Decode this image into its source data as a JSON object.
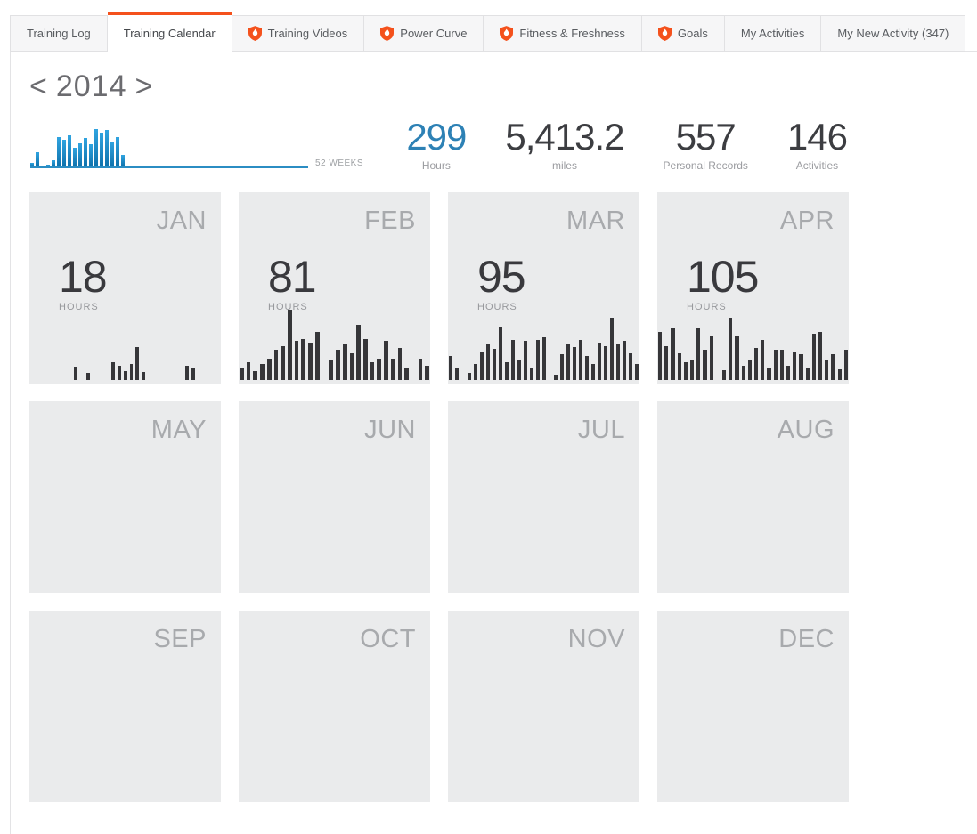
{
  "colors": {
    "accent_orange": "#f4511c",
    "stat_highlight_blue": "#2d81b5",
    "week_bar_top": "#30a4e0",
    "week_bar_bottom": "#0f72ac",
    "week_axis_blue": "#2b8dc3",
    "month_bar_dark": "#363639",
    "card_background": "#eaebec"
  },
  "tabs": [
    {
      "label": "Training Log",
      "active": false,
      "premium": false
    },
    {
      "label": "Training Calendar",
      "active": true,
      "premium": false
    },
    {
      "label": "Training Videos",
      "active": false,
      "premium": true
    },
    {
      "label": "Power Curve",
      "active": false,
      "premium": true
    },
    {
      "label": "Fitness & Freshness",
      "active": false,
      "premium": true
    },
    {
      "label": "Goals",
      "active": false,
      "premium": true
    },
    {
      "label": "My Activities",
      "active": false,
      "premium": false
    },
    {
      "label": "My New Activity (347)",
      "active": false,
      "premium": false
    }
  ],
  "year_nav": {
    "prev": "<",
    "year": "2014",
    "next": ">"
  },
  "week_chart": {
    "type": "bar",
    "weeks_total": 52,
    "weeks_label": "52 WEEKS",
    "values": [
      8,
      35,
      0,
      5,
      14,
      70,
      64,
      74,
      44,
      56,
      68,
      53,
      90,
      80,
      88,
      60,
      70,
      27,
      0,
      0,
      0,
      0,
      0,
      0,
      0,
      0,
      0,
      0,
      0,
      0,
      0,
      0,
      0,
      0,
      0,
      0,
      0,
      0,
      0,
      0,
      0,
      0,
      0,
      0,
      0,
      0,
      0,
      0,
      0,
      0,
      0,
      0
    ]
  },
  "stats": [
    {
      "value": "299",
      "label": "Hours",
      "highlight": true
    },
    {
      "value": "5,413.2",
      "label": "miles",
      "highlight": false
    },
    {
      "value": "557",
      "label": "Personal Records",
      "highlight": false
    },
    {
      "value": "146",
      "label": "Activities",
      "highlight": false
    }
  ],
  "months": [
    {
      "name": "JAN",
      "hours": "18",
      "hours_label": "HOURS",
      "daily_bars": [
        0,
        0,
        0,
        0,
        0,
        0,
        0,
        19,
        0,
        10,
        0,
        0,
        0,
        25,
        20,
        13,
        23,
        46,
        11,
        0,
        0,
        0,
        0,
        0,
        0,
        20,
        18,
        0,
        0,
        0,
        0
      ]
    },
    {
      "name": "FEB",
      "hours": "81",
      "hours_label": "HOURS",
      "daily_bars": [
        17,
        25,
        12,
        22,
        30,
        42,
        48,
        99,
        55,
        58,
        52,
        67,
        0,
        28,
        42,
        50,
        38,
        78,
        57,
        25,
        30,
        55,
        30,
        45,
        18,
        0,
        30,
        20
      ]
    },
    {
      "name": "MAR",
      "hours": "95",
      "hours_label": "HOURS",
      "daily_bars": [
        34,
        16,
        0,
        10,
        22,
        40,
        50,
        44,
        75,
        25,
        56,
        28,
        55,
        18,
        56,
        60,
        0,
        8,
        36,
        50,
        46,
        56,
        34,
        22,
        52,
        48,
        88,
        50,
        55,
        38,
        22
      ]
    },
    {
      "name": "APR",
      "hours": "105",
      "hours_label": "HOURS",
      "daily_bars": [
        68,
        47,
        72,
        38,
        25,
        27,
        74,
        43,
        61,
        0,
        14,
        88,
        61,
        20,
        27,
        45,
        56,
        16,
        42,
        42,
        20,
        40,
        36,
        18,
        65,
        68,
        29,
        36,
        15,
        42
      ]
    },
    {
      "name": "MAY",
      "hours": "",
      "hours_label": "",
      "daily_bars": []
    },
    {
      "name": "JUN",
      "hours": "",
      "hours_label": "",
      "daily_bars": []
    },
    {
      "name": "JUL",
      "hours": "",
      "hours_label": "",
      "daily_bars": []
    },
    {
      "name": "AUG",
      "hours": "",
      "hours_label": "",
      "daily_bars": []
    },
    {
      "name": "SEP",
      "hours": "",
      "hours_label": "",
      "daily_bars": []
    },
    {
      "name": "OCT",
      "hours": "",
      "hours_label": "",
      "daily_bars": []
    },
    {
      "name": "NOV",
      "hours": "",
      "hours_label": "",
      "daily_bars": []
    },
    {
      "name": "DEC",
      "hours": "",
      "hours_label": "",
      "daily_bars": []
    }
  ]
}
